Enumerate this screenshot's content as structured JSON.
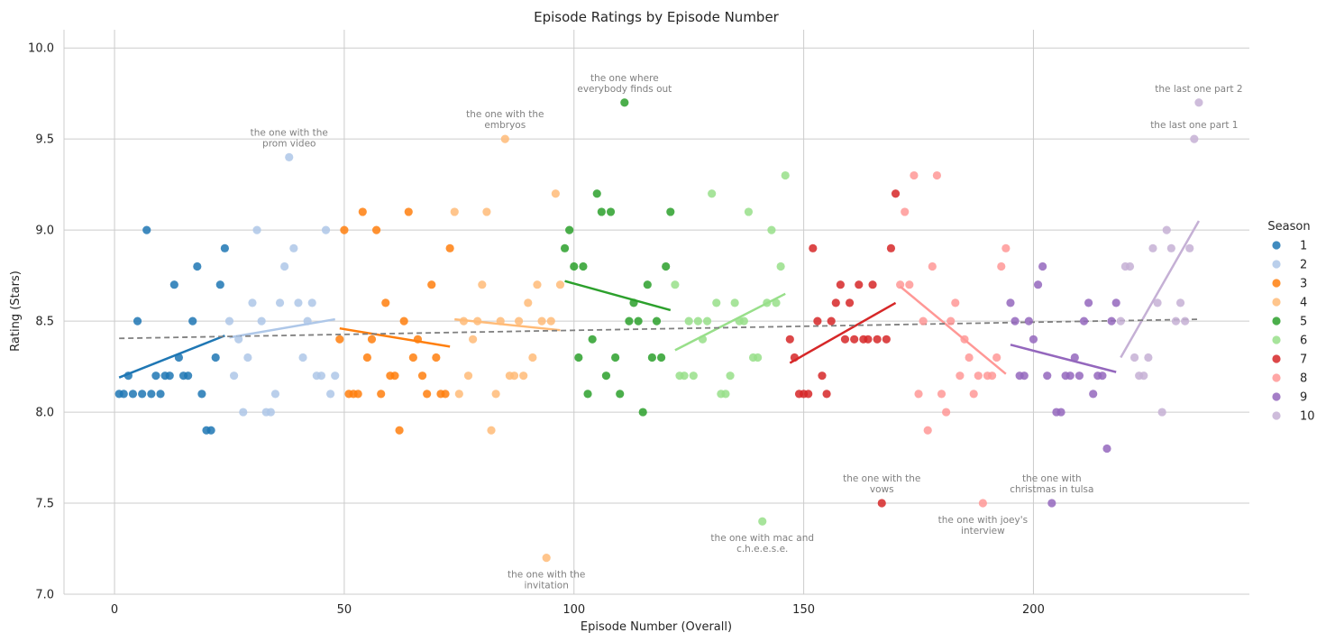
{
  "chart_data": {
    "type": "scatter",
    "title": "Episode Ratings by Episode Number",
    "xlabel": "Episode Number (Overall)",
    "ylabel": "Rating (Stars)",
    "xlim": [
      -11,
      247
    ],
    "ylim": [
      7.0,
      10.1
    ],
    "xticks": [
      0,
      50,
      100,
      150,
      200
    ],
    "yticks": [
      7.0,
      7.5,
      8.0,
      8.5,
      9.0,
      9.5,
      10.0
    ],
    "ytick_labels": [
      "7.0",
      "7.5",
      "8.0",
      "8.5",
      "9.0",
      "9.5",
      "10.0"
    ],
    "grid": true,
    "legend": {
      "title": "Season",
      "position": "right"
    },
    "overall_trend": {
      "x": [
        1,
        236
      ],
      "y": [
        8.405,
        8.51
      ],
      "style": "dashed",
      "color": "#808080"
    },
    "series": [
      {
        "name": "1",
        "color": "#1f77b4",
        "x": [
          1,
          2,
          3,
          4,
          6,
          8,
          10,
          12,
          15,
          5,
          7,
          9,
          11,
          13,
          14,
          16,
          17,
          18,
          19,
          20,
          21,
          22,
          23,
          24
        ],
        "y": [
          8.1,
          8.1,
          8.2,
          8.1,
          8.1,
          8.1,
          8.1,
          8.2,
          8.2,
          8.5,
          9.0,
          8.2,
          8.2,
          8.7,
          8.3,
          8.2,
          8.5,
          8.8,
          8.1,
          7.9,
          7.9,
          8.3,
          8.7,
          8.9
        ],
        "trend": [
          [
            1,
            8.19
          ],
          [
            24,
            8.42
          ]
        ]
      },
      {
        "name": "2",
        "color": "#aec7e8",
        "x": [
          25,
          26,
          27,
          28,
          29,
          30,
          31,
          32,
          33,
          34,
          35,
          36,
          37,
          38,
          39,
          40,
          41,
          42,
          43,
          44,
          45,
          46,
          47,
          48
        ],
        "y": [
          8.5,
          8.2,
          8.4,
          8.0,
          8.3,
          8.6,
          9.0,
          8.5,
          8.0,
          8.0,
          8.1,
          8.6,
          8.8,
          9.4,
          8.9,
          8.6,
          8.3,
          8.5,
          8.6,
          8.2,
          8.2,
          9.0,
          8.1,
          8.2
        ],
        "trend": [
          [
            25,
            8.41
          ],
          [
            48,
            8.51
          ]
        ]
      },
      {
        "name": "3",
        "color": "#ff7f0e",
        "x": [
          49,
          50,
          51,
          52,
          53,
          54,
          55,
          56,
          57,
          58,
          59,
          60,
          61,
          62,
          63,
          64,
          65,
          66,
          67,
          68,
          69,
          70,
          71,
          72,
          73
        ],
        "y": [
          8.4,
          9.0,
          8.1,
          8.1,
          8.1,
          9.1,
          8.3,
          8.4,
          9.0,
          8.1,
          8.6,
          8.2,
          8.2,
          7.9,
          8.5,
          9.1,
          8.3,
          8.4,
          8.2,
          8.1,
          8.7,
          8.3,
          8.1,
          8.1,
          8.9
        ],
        "trend": [
          [
            49,
            8.46
          ],
          [
            73,
            8.36
          ]
        ]
      },
      {
        "name": "4",
        "color": "#ffbb78",
        "x": [
          74,
          75,
          76,
          77,
          78,
          79,
          80,
          81,
          82,
          83,
          84,
          85,
          86,
          87,
          88,
          89,
          90,
          91,
          92,
          93,
          94,
          95,
          96,
          97
        ],
        "y": [
          9.1,
          8.1,
          8.5,
          8.2,
          8.4,
          8.5,
          8.7,
          9.1,
          7.9,
          8.1,
          8.5,
          9.5,
          8.2,
          8.2,
          8.5,
          8.2,
          8.6,
          8.3,
          8.7,
          8.5,
          7.2,
          8.5,
          9.2,
          8.7
        ],
        "trend": [
          [
            74,
            8.51
          ],
          [
            97,
            8.45
          ]
        ]
      },
      {
        "name": "5",
        "color": "#2ca02c",
        "x": [
          98,
          99,
          100,
          101,
          102,
          103,
          104,
          105,
          106,
          107,
          108,
          109,
          110,
          111,
          112,
          113,
          114,
          115,
          116,
          117,
          118,
          119,
          120,
          121
        ],
        "y": [
          8.9,
          9.0,
          8.8,
          8.3,
          8.8,
          8.1,
          8.4,
          9.2,
          9.1,
          8.2,
          9.1,
          8.3,
          8.1,
          9.7,
          8.5,
          8.6,
          8.5,
          8.0,
          8.7,
          8.3,
          8.5,
          8.3,
          8.8,
          9.1
        ],
        "trend": [
          [
            98,
            8.72
          ],
          [
            121,
            8.56
          ]
        ]
      },
      {
        "name": "6",
        "color": "#98df8a",
        "x": [
          122,
          123,
          124,
          125,
          126,
          127,
          128,
          129,
          130,
          131,
          132,
          133,
          134,
          135,
          136,
          137,
          138,
          139,
          140,
          141,
          142,
          143,
          144,
          145,
          146
        ],
        "y": [
          8.7,
          8.2,
          8.2,
          8.5,
          8.2,
          8.5,
          8.4,
          8.5,
          9.2,
          8.6,
          8.1,
          8.1,
          8.2,
          8.6,
          8.5,
          8.5,
          9.1,
          8.3,
          8.3,
          7.4,
          8.6,
          9.0,
          8.6,
          8.8,
          9.3
        ],
        "trend": [
          [
            122,
            8.34
          ],
          [
            146,
            8.65
          ]
        ]
      },
      {
        "name": "7",
        "color": "#d62728",
        "x": [
          147,
          148,
          149,
          150,
          151,
          152,
          153,
          154,
          155,
          156,
          157,
          158,
          159,
          160,
          161,
          162,
          163,
          164,
          165,
          166,
          167,
          168,
          169,
          170
        ],
        "y": [
          8.4,
          8.3,
          8.1,
          8.1,
          8.1,
          8.9,
          8.5,
          8.2,
          8.1,
          8.5,
          8.6,
          8.7,
          8.4,
          8.6,
          8.4,
          8.7,
          8.4,
          8.4,
          8.7,
          8.4,
          7.5,
          8.4,
          8.9,
          9.2
        ],
        "trend": [
          [
            147,
            8.27
          ],
          [
            170,
            8.6
          ]
        ]
      },
      {
        "name": "8",
        "color": "#ff9896",
        "x": [
          171,
          172,
          173,
          174,
          175,
          176,
          177,
          178,
          179,
          180,
          181,
          182,
          183,
          184,
          185,
          186,
          187,
          188,
          189,
          190,
          191,
          192,
          193,
          194
        ],
        "y": [
          8.7,
          9.1,
          8.7,
          9.3,
          8.1,
          8.5,
          7.9,
          8.8,
          9.3,
          8.1,
          8.0,
          8.5,
          8.6,
          8.2,
          8.4,
          8.3,
          8.1,
          8.2,
          7.5,
          8.2,
          8.2,
          8.3,
          8.8,
          8.9
        ],
        "trend": [
          [
            171,
            8.69
          ],
          [
            194,
            8.21
          ]
        ]
      },
      {
        "name": "9",
        "color": "#9467bd",
        "x": [
          195,
          196,
          197,
          198,
          199,
          200,
          201,
          202,
          203,
          204,
          205,
          206,
          207,
          208,
          209,
          210,
          211,
          212,
          213,
          214,
          215,
          216,
          217,
          218
        ],
        "y": [
          8.6,
          8.5,
          8.2,
          8.2,
          8.5,
          8.4,
          8.7,
          8.8,
          8.2,
          7.5,
          8.0,
          8.0,
          8.2,
          8.2,
          8.3,
          8.2,
          8.5,
          8.6,
          8.1,
          8.2,
          8.2,
          7.8,
          8.5,
          8.6
        ],
        "trend": [
          [
            195,
            8.37
          ],
          [
            218,
            8.22
          ]
        ]
      },
      {
        "name": "10",
        "color": "#c5b0d5",
        "x": [
          219,
          220,
          221,
          222,
          223,
          224,
          225,
          226,
          227,
          228,
          229,
          230,
          231,
          232,
          233,
          234,
          235,
          236
        ],
        "y": [
          8.5,
          8.8,
          8.8,
          8.3,
          8.2,
          8.2,
          8.3,
          8.9,
          8.6,
          8.0,
          9.0,
          8.9,
          8.5,
          8.6,
          8.5,
          8.9,
          9.5,
          9.7
        ],
        "trend": [
          [
            219,
            8.3
          ],
          [
            236,
            9.05
          ]
        ]
      }
    ],
    "annotations": [
      {
        "x": 38,
        "y": 9.4,
        "lines": [
          "the one with the",
          "prom video"
        ],
        "pos": "above"
      },
      {
        "x": 85,
        "y": 9.5,
        "lines": [
          "the one with the",
          "embryos"
        ],
        "pos": "above"
      },
      {
        "x": 111,
        "y": 9.7,
        "lines": [
          "the one where",
          "everybody finds out"
        ],
        "pos": "above"
      },
      {
        "x": 236,
        "y": 9.7,
        "lines": [
          "the last one part 2"
        ],
        "pos": "above"
      },
      {
        "x": 235,
        "y": 9.5,
        "lines": [
          "the last one part 1"
        ],
        "pos": "above"
      },
      {
        "x": 167,
        "y": 7.5,
        "lines": [
          "the one with the",
          "vows"
        ],
        "pos": "above"
      },
      {
        "x": 204,
        "y": 7.5,
        "lines": [
          "the one with",
          "christmas in tulsa"
        ],
        "pos": "above"
      },
      {
        "x": 189,
        "y": 7.5,
        "lines": [
          "the one with joey's",
          "interview"
        ],
        "pos": "below"
      },
      {
        "x": 141,
        "y": 7.4,
        "lines": [
          "the one with mac and",
          "c.h.e.e.s.e."
        ],
        "pos": "below"
      },
      {
        "x": 94,
        "y": 7.2,
        "lines": [
          "the one with the",
          "invitation"
        ],
        "pos": "below"
      }
    ]
  }
}
